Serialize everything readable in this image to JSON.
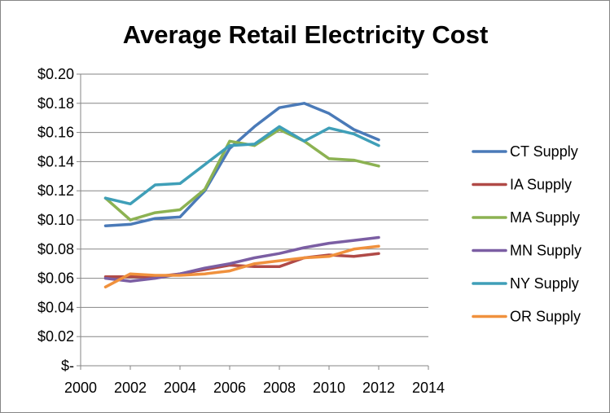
{
  "chart_data": {
    "type": "line",
    "title": "Average Retail Electricity Cost",
    "xlabel": "",
    "ylabel": "",
    "xlim": [
      2000,
      2014
    ],
    "ylim": [
      0,
      0.2
    ],
    "x_ticks": [
      2000,
      2002,
      2004,
      2006,
      2008,
      2010,
      2012,
      2014
    ],
    "x_tick_labels": [
      "2000",
      "2002",
      "2004",
      "2006",
      "2008",
      "2010",
      "2012",
      "2014"
    ],
    "y_ticks": [
      0,
      0.02,
      0.04,
      0.06,
      0.08,
      0.1,
      0.12,
      0.14,
      0.16,
      0.18,
      0.2
    ],
    "y_tick_labels": [
      "$-",
      "$0.02",
      "$0.04",
      "$0.06",
      "$0.08",
      "$0.10",
      "$0.12",
      "$0.14",
      "$0.16",
      "$0.18",
      "$0.20"
    ],
    "grid": "horizontal",
    "legend_position": "right",
    "x": [
      2001,
      2002,
      2003,
      2004,
      2005,
      2006,
      2007,
      2008,
      2009,
      2010,
      2011,
      2012
    ],
    "series": [
      {
        "name": "CT Supply",
        "color": "#4a7ab8",
        "values": [
          0.096,
          0.097,
          0.101,
          0.102,
          0.12,
          0.149,
          0.164,
          0.177,
          0.18,
          0.173,
          0.162,
          0.155
        ]
      },
      {
        "name": "IA Supply",
        "color": "#b04a47",
        "values": [
          0.061,
          0.061,
          0.061,
          0.063,
          0.066,
          0.069,
          0.068,
          0.068,
          0.074,
          0.076,
          0.075,
          0.077
        ]
      },
      {
        "name": "MA Supply",
        "color": "#8cb252",
        "values": [
          0.115,
          0.1,
          0.105,
          0.107,
          0.121,
          0.154,
          0.151,
          0.162,
          0.154,
          0.142,
          0.141,
          0.137
        ]
      },
      {
        "name": "MN Supply",
        "color": "#7b5ea3",
        "values": [
          0.06,
          0.058,
          0.06,
          0.063,
          0.067,
          0.07,
          0.074,
          0.077,
          0.081,
          0.084,
          0.086,
          0.088
        ]
      },
      {
        "name": "NY Supply",
        "color": "#3f9fb8",
        "values": [
          0.115,
          0.111,
          0.124,
          0.125,
          0.138,
          0.151,
          0.152,
          0.164,
          0.154,
          0.163,
          0.159,
          0.151
        ]
      },
      {
        "name": "OR Supply",
        "color": "#f0913d",
        "values": [
          0.054,
          0.063,
          0.062,
          0.062,
          0.063,
          0.065,
          0.07,
          0.072,
          0.074,
          0.075,
          0.08,
          0.082
        ]
      }
    ]
  }
}
